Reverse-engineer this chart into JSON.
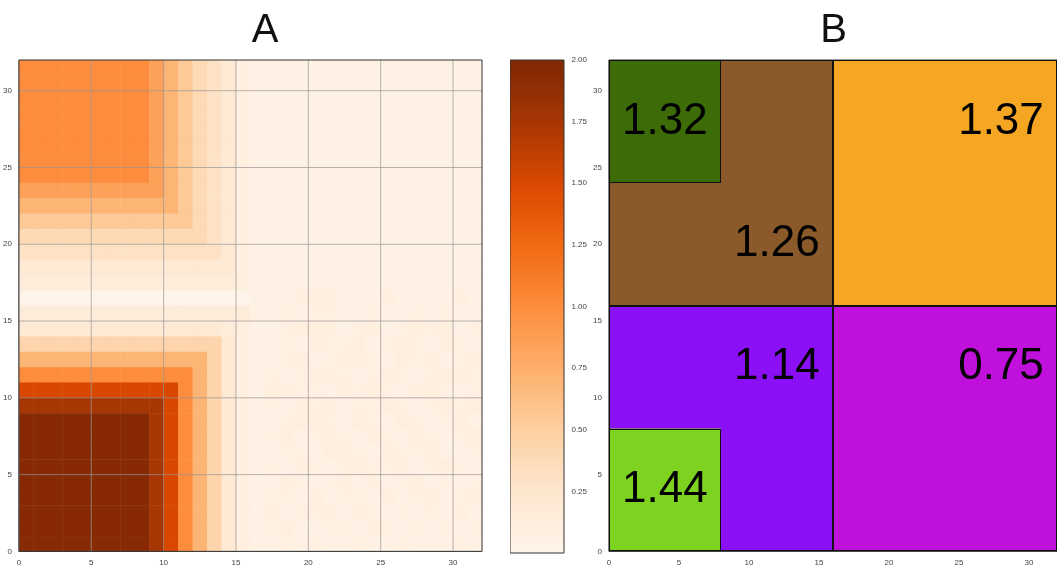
{
  "chart_data": [
    {
      "type": "heatmap",
      "title": "A",
      "xlim": [
        0,
        32
      ],
      "ylim": [
        0,
        32
      ],
      "xticks": [
        0,
        5,
        10,
        15,
        20,
        25,
        30
      ],
      "yticks": [
        0,
        5,
        10,
        15,
        20,
        25,
        30
      ],
      "grid": true,
      "clim": [
        0,
        2
      ],
      "cticks": [
        0.25,
        {
          "value": 0.5,
          "label": "0.50"
        },
        0.75,
        {
          "value": 1,
          "label": "1.00"
        },
        1.25,
        {
          "value": 1.5,
          "label": "1.50"
        },
        1.75,
        {
          "value": 2,
          "label": "2.00"
        }
      ],
      "cells": [
        [
          1,
          1,
          1,
          1,
          1,
          1,
          1,
          1,
          1,
          0.85,
          0.7,
          0.55,
          0.4,
          0.3,
          0.2,
          0.1,
          0.05,
          0.05,
          0.05,
          0.05,
          0.05,
          0.05,
          0.05,
          0.05,
          0.05,
          0.05,
          0.05,
          0.05,
          0.05,
          0.05,
          0.05,
          0.05
        ],
        [
          1,
          1,
          1,
          1,
          1,
          1,
          1,
          1,
          1,
          0.85,
          0.7,
          0.55,
          0.4,
          0.3,
          0.2,
          0.1,
          0.05,
          0.05,
          0.05,
          0.05,
          0.05,
          0.05,
          0.05,
          0.05,
          0.05,
          0.05,
          0.05,
          0.05,
          0.05,
          0.05,
          0.05,
          0.05
        ],
        [
          1,
          1,
          1,
          1,
          1,
          1,
          1,
          1,
          1,
          0.85,
          0.7,
          0.55,
          0.4,
          0.3,
          0.2,
          0.1,
          0.05,
          0.05,
          0.05,
          0.05,
          0.05,
          0.05,
          0.05,
          0.05,
          0.05,
          0.05,
          0.05,
          0.05,
          0.05,
          0.05,
          0.05,
          0.05
        ],
        [
          1,
          1,
          1,
          1,
          1,
          1,
          1,
          1,
          1,
          0.85,
          0.7,
          0.55,
          0.4,
          0.3,
          0.2,
          0.1,
          0.05,
          0.05,
          0.05,
          0.05,
          0.05,
          0.05,
          0.05,
          0.05,
          0.05,
          0.05,
          0.05,
          0.05,
          0.05,
          0.05,
          0.05,
          0.05
        ],
        [
          1,
          1,
          1,
          1,
          1,
          1,
          1,
          1,
          1,
          0.85,
          0.7,
          0.55,
          0.4,
          0.3,
          0.2,
          0.1,
          0.05,
          0.05,
          0.05,
          0.05,
          0.05,
          0.05,
          0.05,
          0.05,
          0.05,
          0.05,
          0.05,
          0.05,
          0.05,
          0.05,
          0.05,
          0.05
        ],
        [
          1,
          1,
          1,
          1,
          1,
          1,
          1,
          1,
          1,
          0.85,
          0.7,
          0.55,
          0.4,
          0.3,
          0.2,
          0.1,
          0.05,
          0.05,
          0.05,
          0.05,
          0.05,
          0.05,
          0.05,
          0.05,
          0.05,
          0.05,
          0.05,
          0.05,
          0.05,
          0.05,
          0.05,
          0.05
        ],
        [
          1,
          1,
          1,
          1,
          1,
          1,
          1,
          1,
          1,
          0.85,
          0.7,
          0.55,
          0.4,
          0.3,
          0.2,
          0.1,
          0.05,
          0.05,
          0.05,
          0.05,
          0.05,
          0.05,
          0.05,
          0.05,
          0.05,
          0.05,
          0.05,
          0.05,
          0.05,
          0.05,
          0.05,
          0.05
        ],
        [
          1,
          1,
          1,
          1,
          1,
          1,
          1,
          1,
          1,
          0.85,
          0.7,
          0.55,
          0.4,
          0.3,
          0.2,
          0.1,
          0.05,
          0.05,
          0.05,
          0.05,
          0.05,
          0.05,
          0.05,
          0.05,
          0.05,
          0.05,
          0.05,
          0.05,
          0.05,
          0.05,
          0.05,
          0.05
        ],
        [
          0.85,
          0.85,
          0.85,
          0.85,
          0.85,
          0.85,
          0.85,
          0.85,
          0.85,
          0.85,
          0.7,
          0.55,
          0.4,
          0.3,
          0.2,
          0.1,
          0.05,
          0.05,
          0.05,
          0.05,
          0.05,
          0.05,
          0.05,
          0.05,
          0.05,
          0.05,
          0.05,
          0.05,
          0.05,
          0.05,
          0.05,
          0.05
        ],
        [
          0.7,
          0.7,
          0.7,
          0.7,
          0.7,
          0.7,
          0.7,
          0.7,
          0.7,
          0.7,
          0.7,
          0.55,
          0.4,
          0.3,
          0.2,
          0.1,
          0.05,
          0.05,
          0.05,
          0.05,
          0.05,
          0.05,
          0.05,
          0.05,
          0.05,
          0.05,
          0.05,
          0.05,
          0.05,
          0.05,
          0.05,
          0.05
        ],
        [
          0.55,
          0.55,
          0.55,
          0.55,
          0.55,
          0.55,
          0.55,
          0.55,
          0.55,
          0.55,
          0.55,
          0.55,
          0.4,
          0.3,
          0.2,
          0.1,
          0.05,
          0.05,
          0.05,
          0.05,
          0.05,
          0.05,
          0.05,
          0.05,
          0.05,
          0.05,
          0.05,
          0.05,
          0.05,
          0.05,
          0.05,
          0.05
        ],
        [
          0.4,
          0.4,
          0.4,
          0.4,
          0.4,
          0.4,
          0.4,
          0.4,
          0.4,
          0.4,
          0.4,
          0.4,
          0.4,
          0.3,
          0.2,
          0.1,
          0.05,
          0.05,
          0.05,
          0.05,
          0.05,
          0.05,
          0.05,
          0.05,
          0.05,
          0.05,
          0.05,
          0.05,
          0.05,
          0.05,
          0.05,
          0.05
        ],
        [
          0.3,
          0.3,
          0.3,
          0.3,
          0.3,
          0.3,
          0.3,
          0.3,
          0.3,
          0.3,
          0.3,
          0.3,
          0.3,
          0.3,
          0.2,
          0.1,
          0.05,
          0.05,
          0.05,
          0.05,
          0.05,
          0.05,
          0.05,
          0.05,
          0.05,
          0.05,
          0.05,
          0.05,
          0.05,
          0.05,
          0.05,
          0.05
        ],
        [
          0.2,
          0.2,
          0.2,
          0.2,
          0.2,
          0.2,
          0.2,
          0.2,
          0.2,
          0.2,
          0.2,
          0.2,
          0.2,
          0.2,
          0.2,
          0.1,
          0.05,
          0.05,
          0.05,
          0.05,
          0.05,
          0.05,
          0.05,
          0.05,
          0.05,
          0.05,
          0.05,
          0.05,
          0.05,
          0.05,
          0.05,
          0.05
        ],
        [
          0.15,
          0.15,
          0.15,
          0.15,
          0.15,
          0.15,
          0.15,
          0.15,
          0.15,
          0.15,
          0.15,
          0.15,
          0.15,
          0.15,
          0.15,
          0.1,
          0.05,
          0.05,
          0.05,
          0.05,
          0.05,
          0.05,
          0.05,
          0.05,
          0.05,
          0.05,
          0.05,
          0.05,
          0.05,
          0.05,
          0.05,
          0.05
        ],
        [
          0.02,
          0.02,
          0.02,
          0.02,
          0.02,
          0.02,
          0.02,
          0.02,
          0.02,
          0.02,
          0.02,
          0.02,
          0.02,
          0.02,
          0.02,
          0.02,
          0.05,
          0.05,
          0.05,
          0.1,
          0.1,
          0.1,
          0.05,
          0.05,
          0.05,
          0.1,
          0.05,
          0.05,
          0.05,
          0.05,
          0.1,
          0.05
        ],
        [
          0.15,
          0.15,
          0.15,
          0.15,
          0.15,
          0.15,
          0.15,
          0.15,
          0.15,
          0.15,
          0.15,
          0.15,
          0.15,
          0.15,
          0.15,
          0.15,
          0.05,
          0.05,
          0.08,
          0.05,
          0.08,
          0.08,
          0.05,
          0.05,
          0.08,
          0.05,
          0.05,
          0.08,
          0.05,
          0.08,
          0.05,
          0.05
        ],
        [
          0.2,
          0.2,
          0.2,
          0.2,
          0.2,
          0.2,
          0.2,
          0.2,
          0.2,
          0.2,
          0.2,
          0.2,
          0.2,
          0.2,
          0.15,
          0.1,
          0.05,
          0.05,
          0.08,
          0.1,
          0.1,
          0.1,
          0.05,
          0.08,
          0.1,
          0.05,
          0.08,
          0.1,
          0.08,
          0.1,
          0.05,
          0.08
        ],
        [
          0.45,
          0.45,
          0.45,
          0.45,
          0.45,
          0.45,
          0.45,
          0.45,
          0.45,
          0.45,
          0.45,
          0.45,
          0.45,
          0.45,
          0.2,
          0.1,
          0.05,
          0.05,
          0.08,
          0.05,
          0.1,
          0.08,
          0.08,
          0.1,
          0.05,
          0.08,
          0.1,
          0.08,
          0.05,
          0.1,
          0.08,
          0.05
        ],
        [
          0.7,
          0.7,
          0.7,
          0.7,
          0.7,
          0.7,
          0.7,
          0.7,
          0.7,
          0.7,
          0.7,
          0.7,
          0.7,
          0.45,
          0.2,
          0.1,
          0.05,
          0.05,
          0.08,
          0.1,
          0.05,
          0.08,
          0.1,
          0.1,
          0.08,
          0.05,
          0.1,
          0.08,
          0.1,
          0.05,
          0.08,
          0.1
        ],
        [
          1,
          1,
          1,
          1,
          1,
          1,
          1,
          1,
          1,
          1,
          1,
          1,
          0.7,
          0.45,
          0.2,
          0.1,
          0.05,
          0.08,
          0.05,
          0.08,
          0.1,
          0.1,
          0.08,
          0.05,
          0.08,
          0.1,
          0.08,
          0.05,
          0.08,
          0.1,
          0.1,
          0.08
        ],
        [
          1.5,
          1.5,
          1.5,
          1.5,
          1.5,
          1.5,
          1.5,
          1.5,
          1.5,
          1.5,
          1.5,
          1,
          0.7,
          0.45,
          0.2,
          0.1,
          0.05,
          0.1,
          0.1,
          0.08,
          0.08,
          0.05,
          0.1,
          0.08,
          0.1,
          0.08,
          0.05,
          0.1,
          0.1,
          0.08,
          0.05,
          0.08
        ],
        [
          1.75,
          1.75,
          1.75,
          1.75,
          1.75,
          1.75,
          1.75,
          1.75,
          1.75,
          1.75,
          1.5,
          1,
          0.7,
          0.45,
          0.2,
          0.1,
          0.05,
          0.08,
          0.05,
          0.1,
          0.08,
          0.1,
          0.05,
          0.08,
          0.08,
          0.1,
          0.08,
          0.05,
          0.08,
          0.1,
          0.08,
          0.1
        ],
        [
          1.95,
          1.95,
          1.95,
          1.95,
          1.95,
          1.95,
          1.95,
          1.95,
          1.95,
          1.75,
          1.5,
          1,
          0.7,
          0.45,
          0.2,
          0.1,
          0.05,
          0.05,
          0.08,
          0.1,
          0.1,
          0.08,
          0.05,
          0.1,
          0.08,
          0.05,
          0.1,
          0.08,
          0.05,
          0.08,
          0.1,
          0.05
        ],
        [
          1.95,
          1.95,
          1.95,
          1.95,
          1.95,
          1.95,
          1.95,
          1.95,
          1.95,
          1.75,
          1.5,
          1,
          0.7,
          0.45,
          0.2,
          0.1,
          0.05,
          0.08,
          0.1,
          0.05,
          0.08,
          0.1,
          0.08,
          0.05,
          0.1,
          0.08,
          0.05,
          0.1,
          0.08,
          0.05,
          0.08,
          0.1
        ],
        [
          1.95,
          1.95,
          1.95,
          1.95,
          1.95,
          1.95,
          1.95,
          1.95,
          1.95,
          1.75,
          1.5,
          1,
          0.7,
          0.45,
          0.2,
          0.1,
          0.05,
          0.05,
          0.08,
          0.08,
          0.05,
          0.1,
          0.1,
          0.08,
          0.05,
          0.1,
          0.08,
          0.08,
          0.1,
          0.05,
          0.05,
          0.08
        ],
        [
          1.95,
          1.95,
          1.95,
          1.95,
          1.95,
          1.95,
          1.95,
          1.95,
          1.95,
          1.75,
          1.5,
          1,
          0.7,
          0.45,
          0.2,
          0.1,
          0.05,
          0.08,
          0.05,
          0.1,
          0.08,
          0.05,
          0.08,
          0.1,
          0.08,
          0.08,
          0.1,
          0.05,
          0.08,
          0.1,
          0.08,
          0.05
        ],
        [
          1.95,
          1.95,
          1.95,
          1.95,
          1.95,
          1.95,
          1.95,
          1.95,
          1.95,
          1.75,
          1.5,
          1,
          0.7,
          0.45,
          0.2,
          0.1,
          0.05,
          0.05,
          0.1,
          0.08,
          0.05,
          0.08,
          0.1,
          0.05,
          0.1,
          0.05,
          0.08,
          0.1,
          0.05,
          0.08,
          0.05,
          0.08
        ],
        [
          1.95,
          1.95,
          1.95,
          1.95,
          1.95,
          1.95,
          1.95,
          1.95,
          1.95,
          1.75,
          1.5,
          1,
          0.7,
          0.45,
          0.2,
          0.1,
          0.05,
          0.08,
          0.08,
          0.05,
          0.1,
          0.05,
          0.08,
          0.08,
          0.05,
          0.1,
          0.05,
          0.08,
          0.1,
          0.05,
          0.08,
          0.1
        ],
        [
          1.95,
          1.95,
          1.95,
          1.95,
          1.95,
          1.95,
          1.95,
          1.95,
          1.95,
          1.75,
          1.5,
          1,
          0.7,
          0.45,
          0.2,
          0.1,
          0.05,
          0.1,
          0.05,
          0.08,
          0.08,
          0.1,
          0.05,
          0.1,
          0.08,
          0.05,
          0.08,
          0.05,
          0.08,
          0.05,
          0.1,
          0.05
        ],
        [
          1.95,
          1.95,
          1.95,
          1.95,
          1.95,
          1.95,
          1.95,
          1.95,
          1.95,
          1.75,
          1.5,
          1,
          0.7,
          0.45,
          0.2,
          0.1,
          0.05,
          0.08,
          0.1,
          0.05,
          0.05,
          0.08,
          0.08,
          0.05,
          0.1,
          0.08,
          0.05,
          0.08,
          0.05,
          0.08,
          0.05,
          0.08
        ],
        [
          1.95,
          1.95,
          1.95,
          1.95,
          1.95,
          1.95,
          1.95,
          1.95,
          1.95,
          1.75,
          1.5,
          1,
          0.7,
          0.45,
          0.2,
          0.1,
          0.05,
          0.05,
          0.08,
          0.05,
          0.08,
          0.05,
          0.05,
          0.08,
          0.05,
          0.05,
          0.08,
          0.05,
          0.05,
          0.05,
          0.08,
          0.05
        ]
      ]
    },
    {
      "type": "heatmap",
      "title": "B",
      "xlim": [
        0,
        32
      ],
      "ylim": [
        0,
        32
      ],
      "xticks": [
        0,
        5,
        10,
        15,
        20,
        25,
        30
      ],
      "yticks": [
        0,
        5,
        10,
        15,
        20,
        25,
        30
      ],
      "data_labels": true,
      "cells": [
        [
          1.32,
          null,
          null,
          1.37
        ],
        [
          null,
          1.26,
          null,
          null
        ],
        [
          null,
          1.14,
          null,
          0.75
        ],
        [
          1.44,
          null,
          null,
          null
        ]
      ],
      "colors": [
        [
          "#3d6b07",
          null,
          null,
          "#f5a623"
        ],
        [
          null,
          "#8b5a2b",
          null,
          null
        ],
        [
          null,
          "#8b10f5",
          null,
          "#c010dc"
        ],
        [
          "#7ed321",
          null,
          null,
          null
        ]
      ]
    }
  ]
}
